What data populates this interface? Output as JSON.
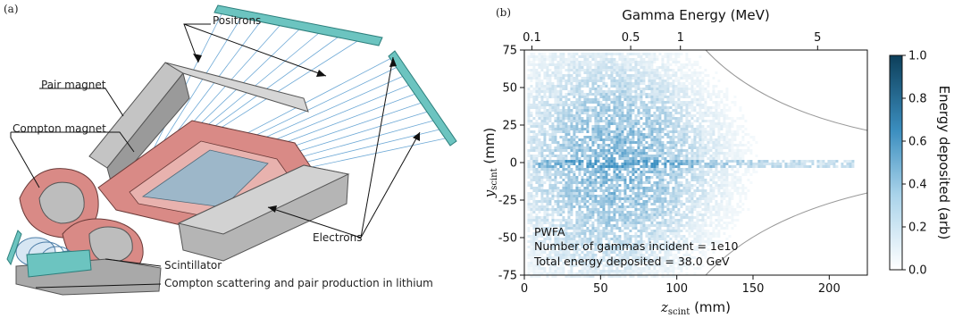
{
  "panel_a": {
    "label": "(a)",
    "labels": {
      "positrons": "Positrons",
      "pair_magnet": "Pair magnet",
      "compton_magnet": "Compton magnet",
      "electrons": "Electrons",
      "scintillator": "Scintillator",
      "compton_scattering": "Compton scattering and pair production in lithium"
    },
    "colors": {
      "magnet": "#d98a86",
      "yoke": "#bdbdbd",
      "detector": "#6cc4c0",
      "track": "#6ea9d6"
    }
  },
  "panel_b": {
    "label": "(b)",
    "top_axis": {
      "label": "Gamma Energy (MeV)",
      "ticks": [
        "0.1",
        "0.5",
        "1",
        "5"
      ]
    },
    "x_axis": {
      "label_main": "z",
      "label_sub": "scint",
      "label_unit": " (mm)",
      "range": [
        0,
        225
      ],
      "ticks": [
        0,
        50,
        100,
        150,
        200
      ]
    },
    "y_axis": {
      "label_main": "y",
      "label_sub": "scint",
      "label_unit": " (mm)",
      "range": [
        -75,
        75
      ],
      "ticks": [
        -75,
        -50,
        -25,
        0,
        25,
        50,
        75
      ]
    },
    "colorbar": {
      "label": "Energy deposited (arb)",
      "range": [
        0,
        1
      ],
      "ticks": [
        "0.0",
        "0.2",
        "0.4",
        "0.6",
        "0.8",
        "1.0"
      ],
      "colormap": [
        "#ffffff",
        "#0d3f5a"
      ]
    },
    "annotations": {
      "line1": "PWFA",
      "line2": "Number of gammas incident = 1e10",
      "line3": "Total energy deposited = 38.0 GeV"
    }
  },
  "chart_data": {
    "type": "heatmap",
    "xlabel": "z_scint (mm)",
    "ylabel": "y_scint (mm)",
    "xlim": [
      0,
      225
    ],
    "ylim": [
      -75,
      75
    ],
    "top_xlabel": "Gamma Energy (MeV)",
    "top_ticks": [
      "0.1",
      "0.5",
      "1",
      "5"
    ],
    "colorbar_label": "Energy deposited (arb)",
    "colorbar_range": [
      0,
      1
    ],
    "distribution": {
      "peak_z_mm": 60,
      "z_spread_mm": 40,
      "y_halfwidth_mm": [
        30,
        5
      ],
      "thin_core_mm": [
        5,
        215
      ]
    }
  }
}
